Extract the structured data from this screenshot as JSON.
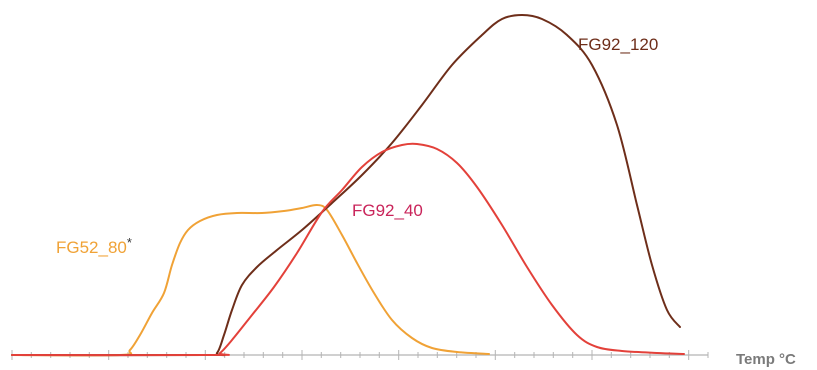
{
  "chart_data": {
    "type": "line",
    "title": "",
    "xlabel": "Temp °C",
    "ylabel": "",
    "x_ticks": 36,
    "grid": false,
    "legend": "none",
    "series": [
      {
        "name": "FG92_120",
        "label_text": "FG92_120",
        "color": "#6e2e1a",
        "points": [
          [
            0,
            0
          ],
          [
            195,
            0
          ],
          [
            205,
            2
          ],
          [
            212,
            20
          ],
          [
            220,
            45
          ],
          [
            230,
            70
          ],
          [
            245,
            88
          ],
          [
            265,
            105
          ],
          [
            290,
            125
          ],
          [
            320,
            152
          ],
          [
            350,
            180
          ],
          [
            380,
            212
          ],
          [
            410,
            250
          ],
          [
            440,
            290
          ],
          [
            470,
            320
          ],
          [
            490,
            336
          ],
          [
            510,
            340
          ],
          [
            530,
            336
          ],
          [
            555,
            320
          ],
          [
            580,
            290
          ],
          [
            605,
            230
          ],
          [
            625,
            150
          ],
          [
            640,
            90
          ],
          [
            655,
            45
          ],
          [
            668,
            28
          ]
        ]
      },
      {
        "name": "FG92_40",
        "label_text": "FG92_40",
        "color": "#e3413a",
        "points": [
          [
            0,
            0
          ],
          [
            200,
            0
          ],
          [
            208,
            2
          ],
          [
            220,
            15
          ],
          [
            240,
            40
          ],
          [
            262,
            68
          ],
          [
            285,
            102
          ],
          [
            310,
            143
          ],
          [
            330,
            165
          ],
          [
            350,
            188
          ],
          [
            370,
            203
          ],
          [
            390,
            210
          ],
          [
            405,
            211
          ],
          [
            425,
            206
          ],
          [
            445,
            192
          ],
          [
            465,
            168
          ],
          [
            490,
            130
          ],
          [
            515,
            88
          ],
          [
            540,
            50
          ],
          [
            565,
            20
          ],
          [
            585,
            8
          ],
          [
            610,
            4
          ],
          [
            645,
            2
          ],
          [
            672,
            1
          ]
        ]
      },
      {
        "name": "FG52_80*",
        "label_text": "FG52_80",
        "label_suffix": "*",
        "color": "#f0a236",
        "points": [
          [
            0,
            0
          ],
          [
            108,
            0
          ],
          [
            118,
            5
          ],
          [
            128,
            20
          ],
          [
            140,
            42
          ],
          [
            152,
            62
          ],
          [
            160,
            90
          ],
          [
            168,
            112
          ],
          [
            176,
            125
          ],
          [
            188,
            134
          ],
          [
            205,
            140
          ],
          [
            225,
            142
          ],
          [
            250,
            142
          ],
          [
            272,
            144
          ],
          [
            290,
            147
          ],
          [
            305,
            150
          ],
          [
            315,
            145
          ],
          [
            330,
            120
          ],
          [
            345,
            92
          ],
          [
            362,
            62
          ],
          [
            380,
            35
          ],
          [
            400,
            17
          ],
          [
            420,
            7
          ],
          [
            445,
            3
          ],
          [
            477,
            1
          ]
        ]
      }
    ]
  }
}
